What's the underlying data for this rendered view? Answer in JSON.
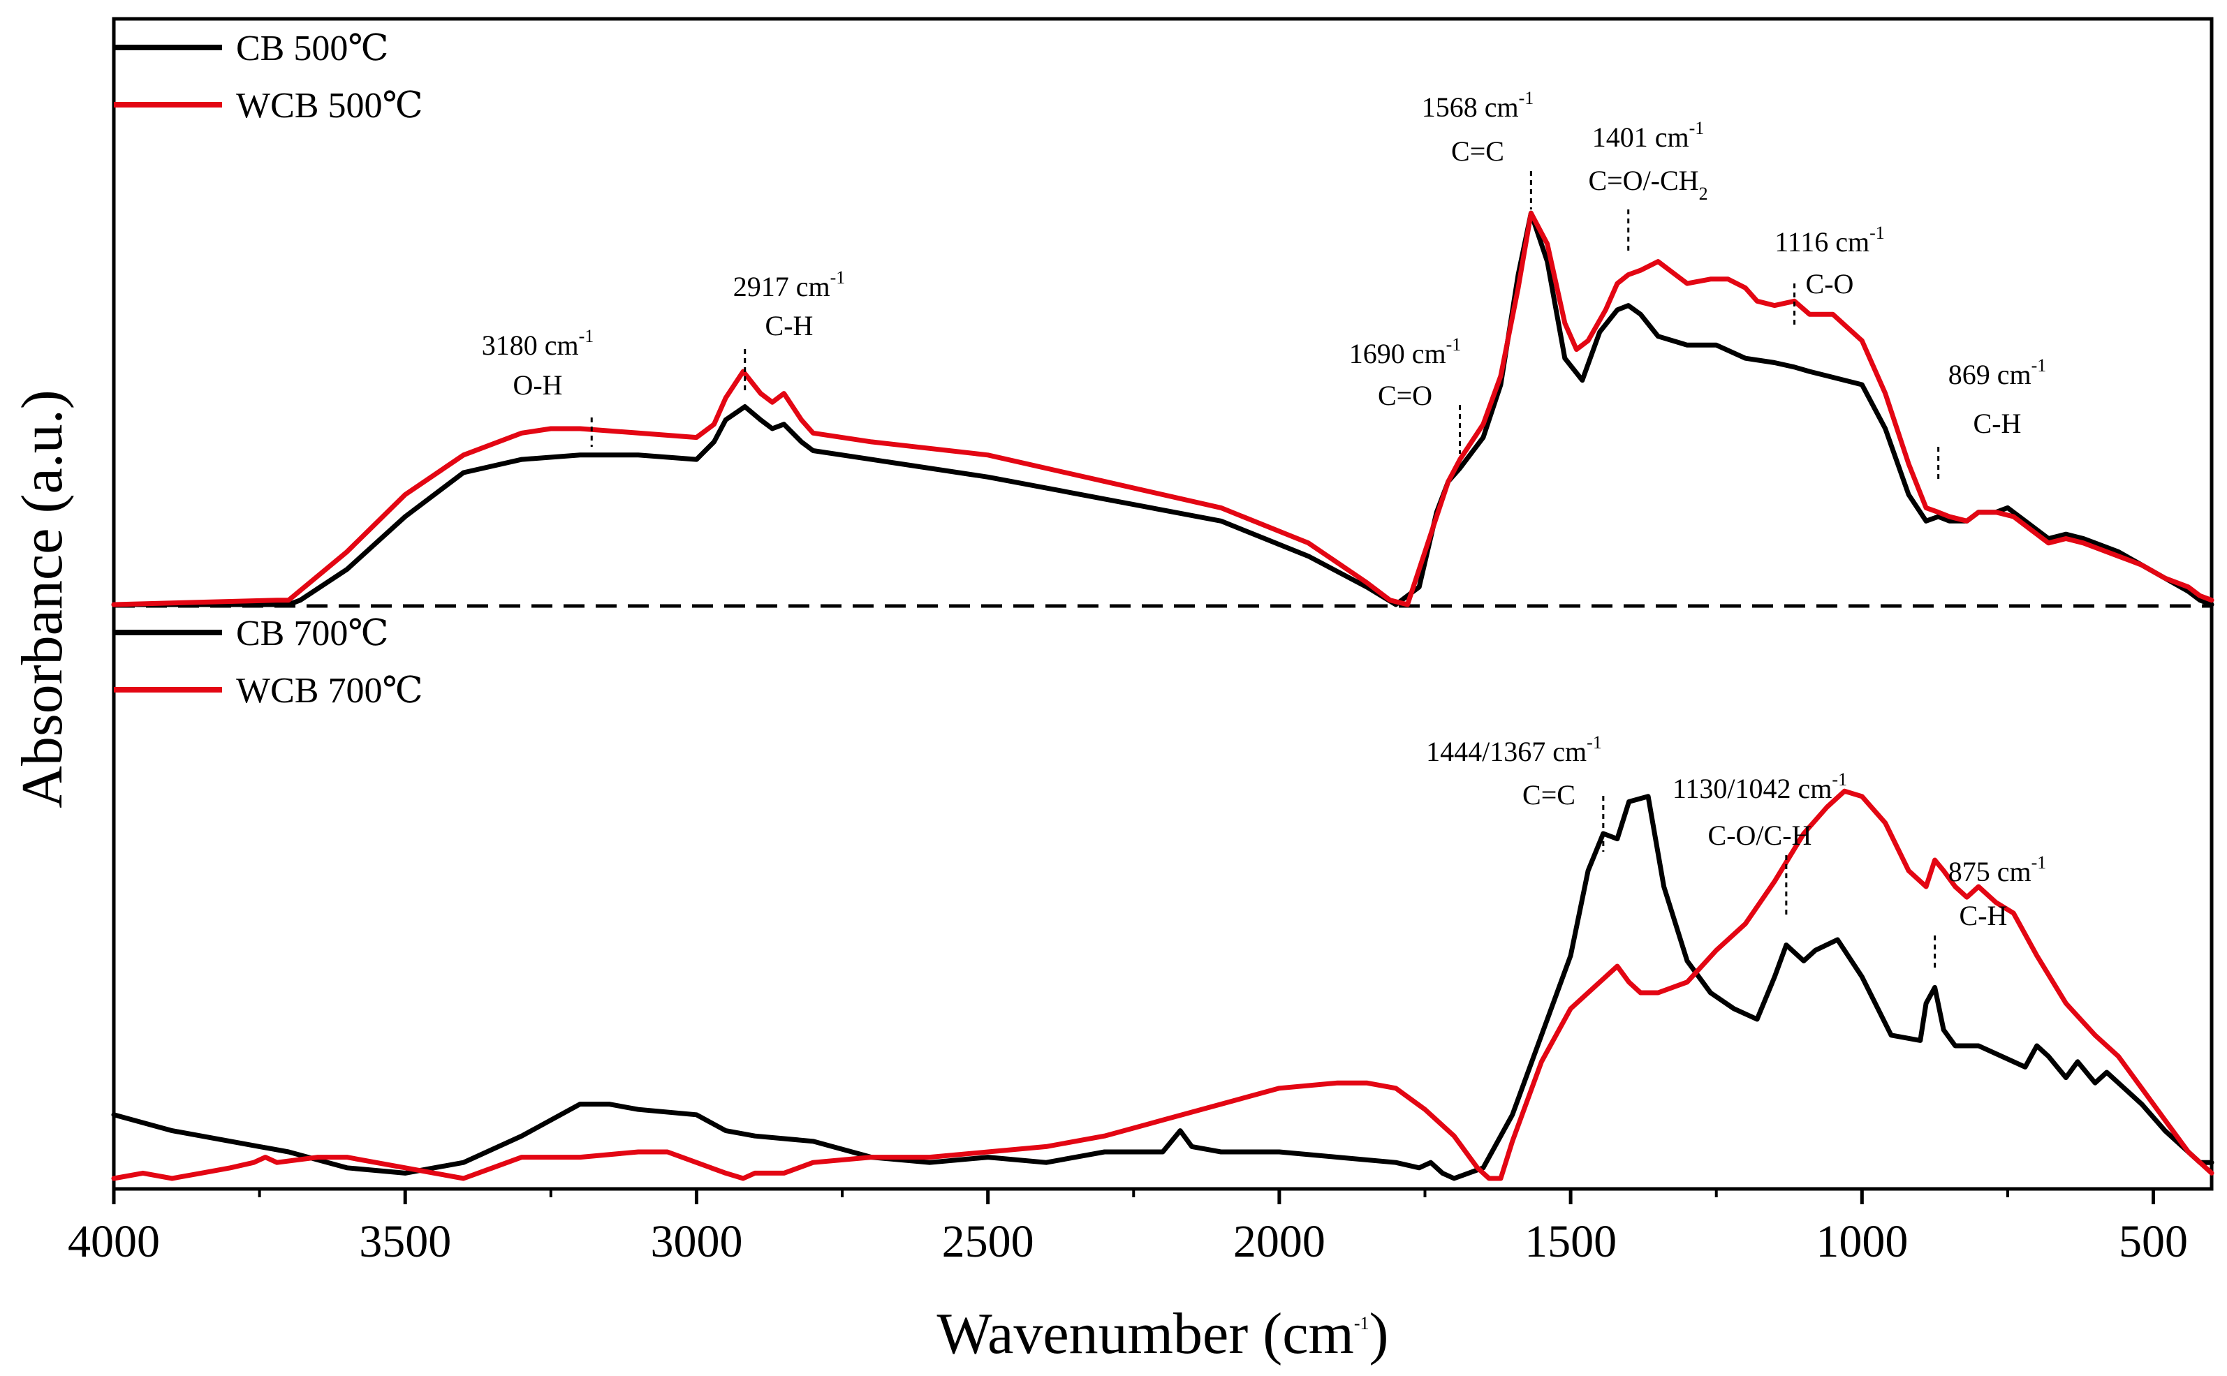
{
  "chart_data": {
    "type": "line",
    "title": "",
    "xlabel": "Wavenumber (cm",
    "xlabel_sup": "-1",
    "xlabel_end": ")",
    "ylabel": "Absorbance (a.u.)",
    "xlim": [
      4000,
      400
    ],
    "x_reversed": true,
    "grid": false,
    "xticks": [
      4000,
      3500,
      3000,
      2500,
      2000,
      1500,
      1000,
      500
    ],
    "xtick_labels": [
      "4000",
      "3500",
      "3000",
      "2500",
      "2000",
      "1500",
      "1000",
      "500"
    ],
    "y_ticks_shown": false,
    "colors": {
      "CB": "#000000",
      "WCB": "#e30613",
      "divider": "#000000"
    },
    "panels": [
      {
        "name": "500C",
        "legend": [
          {
            "label": "CB 500℃",
            "color": "#000000"
          },
          {
            "label": "WCB 500℃",
            "color": "#e30613"
          }
        ],
        "series": [
          {
            "name": "CB 500℃",
            "color": "#000000",
            "x": [
              4000,
              3700,
              3680,
              3600,
              3500,
              3400,
              3300,
              3200,
              3100,
              3000,
              2970,
              2950,
              2917,
              2890,
              2870,
              2850,
              2820,
              2800,
              2700,
              2500,
              2300,
              2100,
              1950,
              1850,
              1800,
              1760,
              1730,
              1710,
              1690,
              1650,
              1620,
              1590,
              1568,
              1540,
              1510,
              1480,
              1450,
              1420,
              1401,
              1380,
              1350,
              1300,
              1250,
              1200,
              1150,
              1116,
              1090,
              1060,
              1000,
              960,
              920,
              890,
              869,
              850,
              820,
              800,
              770,
              750,
              720,
              700,
              680,
              650,
              620,
              600,
              560,
              520,
              480,
              440,
              420,
              400
            ],
            "y": [
              0.0,
              0.0,
              0.01,
              0.08,
              0.2,
              0.3,
              0.33,
              0.34,
              0.34,
              0.33,
              0.37,
              0.42,
              0.45,
              0.42,
              0.4,
              0.41,
              0.37,
              0.35,
              0.33,
              0.29,
              0.24,
              0.19,
              0.11,
              0.04,
              0.0,
              0.04,
              0.21,
              0.28,
              0.31,
              0.38,
              0.5,
              0.75,
              0.89,
              0.78,
              0.56,
              0.51,
              0.62,
              0.67,
              0.68,
              0.66,
              0.61,
              0.59,
              0.59,
              0.56,
              0.55,
              0.54,
              0.53,
              0.52,
              0.5,
              0.4,
              0.25,
              0.19,
              0.2,
              0.19,
              0.19,
              0.21,
              0.21,
              0.22,
              0.19,
              0.17,
              0.15,
              0.16,
              0.15,
              0.14,
              0.12,
              0.09,
              0.06,
              0.03,
              0.01,
              0.0
            ]
          },
          {
            "name": "WCB 500℃",
            "color": "#e30613",
            "x": [
              4000,
              3720,
              3700,
              3600,
              3500,
              3400,
              3300,
              3250,
              3200,
              3100,
              3000,
              2970,
              2950,
              2920,
              2890,
              2870,
              2850,
              2820,
              2800,
              2700,
              2500,
              2300,
              2100,
              1950,
              1850,
              1810,
              1780,
              1740,
              1710,
              1690,
              1650,
              1620,
              1590,
              1568,
              1540,
              1510,
              1490,
              1470,
              1440,
              1420,
              1401,
              1380,
              1350,
              1300,
              1260,
              1230,
              1200,
              1180,
              1150,
              1116,
              1090,
              1050,
              1000,
              960,
              920,
              890,
              869,
              850,
              820,
              800,
              770,
              740,
              720,
              700,
              680,
              650,
              620,
              600,
              560,
              520,
              480,
              440,
              420,
              400
            ],
            "y": [
              0.0,
              0.01,
              0.01,
              0.12,
              0.25,
              0.34,
              0.39,
              0.4,
              0.4,
              0.39,
              0.38,
              0.41,
              0.47,
              0.53,
              0.48,
              0.46,
              0.48,
              0.42,
              0.39,
              0.37,
              0.34,
              0.28,
              0.22,
              0.14,
              0.05,
              0.01,
              0.0,
              0.16,
              0.28,
              0.33,
              0.41,
              0.52,
              0.72,
              0.89,
              0.82,
              0.64,
              0.58,
              0.6,
              0.67,
              0.73,
              0.75,
              0.76,
              0.78,
              0.73,
              0.74,
              0.74,
              0.72,
              0.69,
              0.68,
              0.69,
              0.66,
              0.66,
              0.6,
              0.48,
              0.32,
              0.22,
              0.21,
              0.2,
              0.19,
              0.21,
              0.21,
              0.2,
              0.18,
              0.16,
              0.14,
              0.15,
              0.14,
              0.13,
              0.11,
              0.09,
              0.06,
              0.04,
              0.02,
              0.01
            ]
          }
        ],
        "annotations": [
          {
            "wavenumber": 3180,
            "label": "3180 cm",
            "sup": "-1",
            "group": "O-H"
          },
          {
            "wavenumber": 2917,
            "label": "2917 cm",
            "sup": "-1",
            "group": "C-H"
          },
          {
            "wavenumber": 1690,
            "label": "1690 cm",
            "sup": "-1",
            "group": "C=O"
          },
          {
            "wavenumber": 1568,
            "label": "1568 cm",
            "sup": "-1",
            "group": "C=C"
          },
          {
            "wavenumber": 1401,
            "label": "1401 cm",
            "sup": "-1",
            "group": "C=O/-CH",
            "group_sub": "2"
          },
          {
            "wavenumber": 1116,
            "label": "1116 cm",
            "sup": "-1",
            "group": "C-O"
          },
          {
            "wavenumber": 869,
            "label": "869 cm",
            "sup": "-1",
            "group": "C-H"
          }
        ]
      },
      {
        "name": "700C",
        "legend": [
          {
            "label": "CB 700℃",
            "color": "#000000"
          },
          {
            "label": "WCB 700℃",
            "color": "#e30613"
          }
        ],
        "series": [
          {
            "name": "CB 700℃",
            "color": "#000000",
            "x": [
              4000,
              3900,
              3800,
              3750,
              3700,
              3600,
              3500,
              3400,
              3300,
              3200,
              3150,
              3100,
              3000,
              2950,
              2900,
              2800,
              2700,
              2600,
              2500,
              2400,
              2300,
              2200,
              2170,
              2150,
              2100,
              2000,
              1900,
              1800,
              1760,
              1740,
              1720,
              1700,
              1650,
              1600,
              1550,
              1500,
              1470,
              1444,
              1420,
              1400,
              1367,
              1340,
              1300,
              1260,
              1220,
              1180,
              1150,
              1130,
              1100,
              1080,
              1042,
              1000,
              950,
              900,
              890,
              875,
              860,
              840,
              800,
              760,
              720,
              700,
              680,
              650,
              630,
              600,
              580,
              560,
              520,
              480,
              440,
              420,
              400
            ],
            "y": [
              0.12,
              0.09,
              0.07,
              0.06,
              0.05,
              0.02,
              0.01,
              0.03,
              0.08,
              0.14,
              0.14,
              0.13,
              0.12,
              0.09,
              0.08,
              0.07,
              0.04,
              0.03,
              0.04,
              0.03,
              0.05,
              0.05,
              0.09,
              0.06,
              0.05,
              0.05,
              0.04,
              0.03,
              0.02,
              0.03,
              0.01,
              0.0,
              0.02,
              0.12,
              0.27,
              0.42,
              0.58,
              0.65,
              0.64,
              0.71,
              0.72,
              0.55,
              0.41,
              0.35,
              0.32,
              0.3,
              0.38,
              0.44,
              0.41,
              0.43,
              0.45,
              0.38,
              0.27,
              0.26,
              0.33,
              0.36,
              0.28,
              0.25,
              0.25,
              0.23,
              0.21,
              0.25,
              0.23,
              0.19,
              0.22,
              0.18,
              0.2,
              0.18,
              0.14,
              0.09,
              0.05,
              0.03,
              0.03
            ]
          },
          {
            "name": "WCB 700℃",
            "color": "#e30613",
            "x": [
              4000,
              3950,
              3900,
              3850,
              3800,
              3760,
              3740,
              3720,
              3650,
              3600,
              3500,
              3450,
              3400,
              3350,
              3300,
              3200,
              3100,
              3050,
              3000,
              2950,
              2920,
              2900,
              2850,
              2800,
              2700,
              2600,
              2500,
              2400,
              2300,
              2200,
              2100,
              2000,
              1900,
              1850,
              1800,
              1750,
              1700,
              1660,
              1640,
              1620,
              1600,
              1550,
              1500,
              1450,
              1420,
              1400,
              1380,
              1350,
              1300,
              1250,
              1200,
              1150,
              1100,
              1060,
              1030,
              1000,
              960,
              920,
              890,
              875,
              860,
              840,
              820,
              800,
              770,
              740,
              700,
              650,
              600,
              560,
              520,
              480,
              440,
              420,
              400
            ],
            "y": [
              0.0,
              0.01,
              0.0,
              0.01,
              0.02,
              0.03,
              0.04,
              0.03,
              0.04,
              0.04,
              0.02,
              0.01,
              0.0,
              0.02,
              0.04,
              0.04,
              0.05,
              0.05,
              0.03,
              0.01,
              0.0,
              0.01,
              0.01,
              0.03,
              0.04,
              0.04,
              0.05,
              0.06,
              0.08,
              0.11,
              0.14,
              0.17,
              0.18,
              0.18,
              0.17,
              0.13,
              0.08,
              0.02,
              0.0,
              0.0,
              0.07,
              0.22,
              0.32,
              0.37,
              0.4,
              0.37,
              0.35,
              0.35,
              0.37,
              0.43,
              0.48,
              0.56,
              0.65,
              0.7,
              0.73,
              0.72,
              0.67,
              0.58,
              0.55,
              0.6,
              0.58,
              0.55,
              0.53,
              0.55,
              0.52,
              0.5,
              0.42,
              0.33,
              0.27,
              0.23,
              0.17,
              0.11,
              0.05,
              0.03,
              0.01
            ]
          }
        ],
        "annotations": [
          {
            "wavenumber": 1444,
            "label": "1444/1367 cm",
            "sup": "-1",
            "group": "C=C"
          },
          {
            "wavenumber": 1130,
            "label": "1130/1042 cm",
            "sup": "-1",
            "group": "C-O/C-H"
          },
          {
            "wavenumber": 875,
            "label": "875 cm",
            "sup": "-1",
            "group": "C-H"
          }
        ]
      }
    ]
  }
}
